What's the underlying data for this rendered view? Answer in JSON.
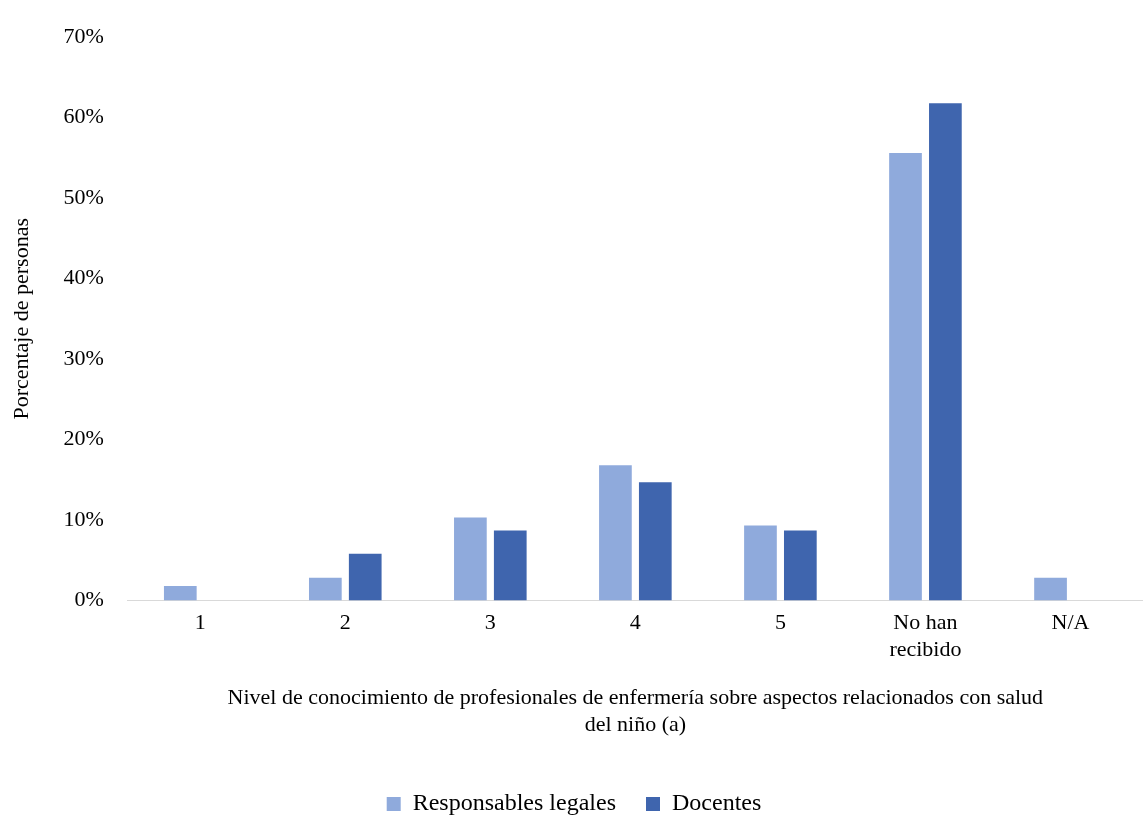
{
  "chart_data": {
    "type": "bar",
    "xlabel": "Nivel de conocimiento de profesionales de enfermería sobre aspectos relacionados con salud del niño (a)",
    "ylabel": "Porcentaje de personas",
    "categories": [
      "1",
      "2",
      "3",
      "4",
      "5",
      "No han recibido",
      "N/A"
    ],
    "series": [
      {
        "name": "Responsables legales",
        "color": "#8faadc",
        "values": [
          1.8,
          2.8,
          10.3,
          16.8,
          9.3,
          55.6,
          2.8
        ]
      },
      {
        "name": "Docentes",
        "color": "#3f65ae",
        "values": [
          0,
          5.8,
          8.7,
          14.7,
          8.7,
          61.8,
          0
        ]
      }
    ],
    "ylim": [
      0,
      70
    ],
    "yticks": [
      {
        "value": 0,
        "label": "0%"
      },
      {
        "value": 10,
        "label": "10%"
      },
      {
        "value": 20,
        "label": "20%"
      },
      {
        "value": 30,
        "label": "30%"
      },
      {
        "value": 40,
        "label": "40%"
      },
      {
        "value": 50,
        "label": "50%"
      },
      {
        "value": 60,
        "label": "60%"
      },
      {
        "value": 70,
        "label": "70%"
      }
    ],
    "grid": false,
    "legend": "bottom"
  }
}
